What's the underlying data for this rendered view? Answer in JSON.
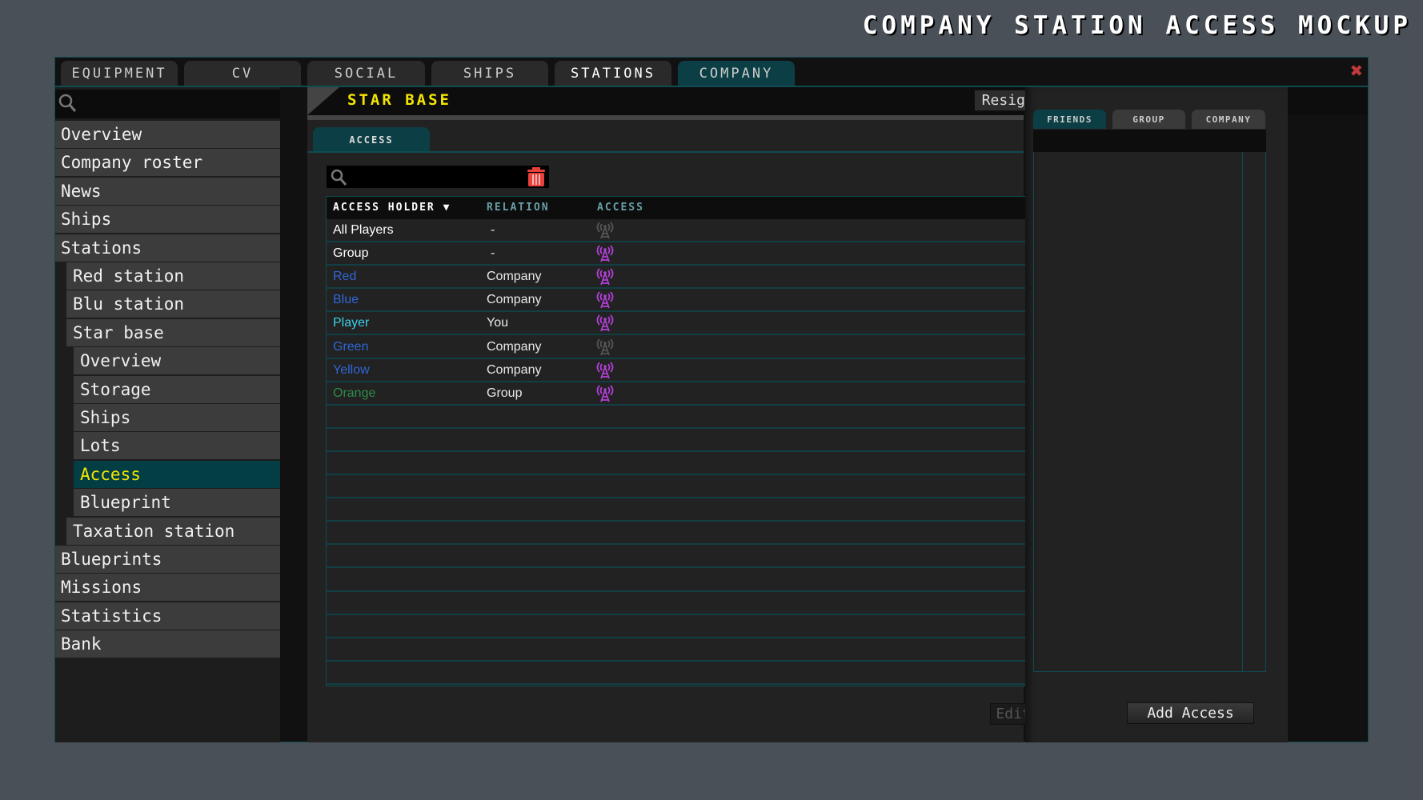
{
  "title": "COMPANY STATION ACCESS MOCKUP",
  "tabs": [
    {
      "label": "EQUIPMENT"
    },
    {
      "label": "CV"
    },
    {
      "label": "SOCIAL"
    },
    {
      "label": "SHIPS"
    },
    {
      "label": "STATIONS"
    },
    {
      "label": "COMPANY",
      "active": true
    }
  ],
  "sidebar": {
    "items": [
      {
        "label": "Overview",
        "level": 0
      },
      {
        "label": "Company roster",
        "level": 0
      },
      {
        "label": "News",
        "level": 0
      },
      {
        "label": "Ships",
        "level": 0
      },
      {
        "label": "Stations",
        "level": 0
      },
      {
        "label": "Red station",
        "level": 1
      },
      {
        "label": "Blu station",
        "level": 1
      },
      {
        "label": "Star base",
        "level": 1
      },
      {
        "label": "Overview",
        "level": 2
      },
      {
        "label": "Storage",
        "level": 2
      },
      {
        "label": "Ships",
        "level": 2
      },
      {
        "label": "Lots",
        "level": 2
      },
      {
        "label": "Access",
        "level": 2,
        "selected": true
      },
      {
        "label": "Blueprint",
        "level": 2
      },
      {
        "label": "Taxation station",
        "level": 1
      },
      {
        "label": "Blueprints",
        "level": 0
      },
      {
        "label": "Missions",
        "level": 0
      },
      {
        "label": "Statistics",
        "level": 0
      },
      {
        "label": "Bank",
        "level": 0
      }
    ]
  },
  "header": {
    "title": "STAR BASE",
    "resign_label": "Resign Station"
  },
  "subtab": "ACCESS",
  "table": {
    "columns": [
      "ACCESS HOLDER",
      "RELATION",
      "ACCESS"
    ],
    "sort_column": "ACCESS HOLDER",
    "sort_dir": "desc",
    "rows": [
      {
        "holder": "All Players",
        "relation": "-",
        "access": false,
        "color": "#ffffff"
      },
      {
        "holder": "Group",
        "relation": "-",
        "access": true,
        "color": "#ffffff"
      },
      {
        "holder": "Red",
        "relation": "Company",
        "access": true,
        "color": "#2f66d6"
      },
      {
        "holder": "Blue",
        "relation": "Company",
        "access": true,
        "color": "#2f66d6"
      },
      {
        "holder": "Player",
        "relation": "You",
        "access": true,
        "color": "#3ccfe8"
      },
      {
        "holder": "Green",
        "relation": "Company",
        "access": false,
        "color": "#2f66d6"
      },
      {
        "holder": "Yellow",
        "relation": "Company",
        "access": true,
        "color": "#2f66d6"
      },
      {
        "holder": "Orange",
        "relation": "Group",
        "access": true,
        "color": "#2e8a4a"
      }
    ],
    "total_rows": 20,
    "scroll_fraction": 0.22
  },
  "edit_label": "Edit Access",
  "right": {
    "tabs": [
      {
        "label": "FRIENDS",
        "active": true
      },
      {
        "label": "GROUP"
      },
      {
        "label": "COMPANY"
      }
    ],
    "add_label": "Add Access"
  },
  "colors": {
    "accent": "#0c3f45",
    "highlight": "#f4e600",
    "access_on": "#b23fd6",
    "access_off": "#555555",
    "delete": "#e8413c"
  }
}
